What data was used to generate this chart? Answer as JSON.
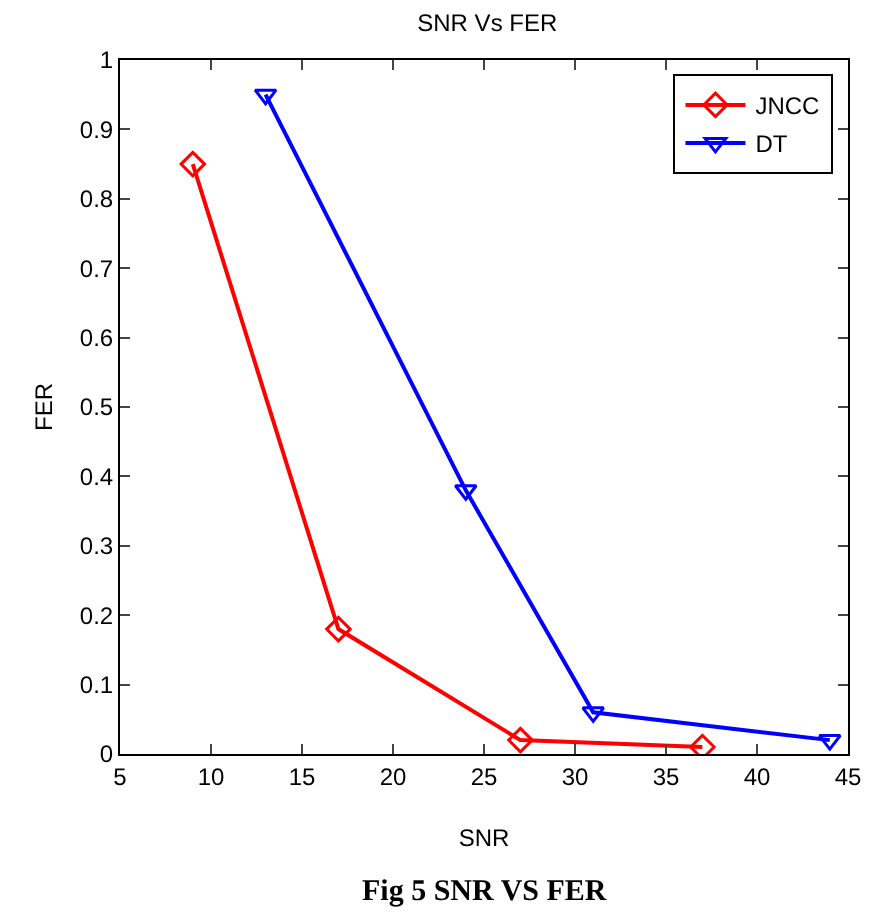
{
  "chart_data": {
    "type": "line",
    "title": "SNR Vs FER",
    "xlabel": "SNR",
    "ylabel": "FER",
    "annotations": [
      "Fig 5 SNR VS FER"
    ],
    "series": [
      {
        "name": "JNCC",
        "color": "#ff0000",
        "marker": "diamond",
        "x": [
          9,
          17,
          27,
          37
        ],
        "values": [
          0.85,
          0.18,
          0.02,
          0.01
        ]
      },
      {
        "name": "DT",
        "color": "#0000ff",
        "marker": "triangle",
        "x": [
          13,
          24,
          31,
          44
        ],
        "values": [
          0.95,
          0.38,
          0.06,
          0.02
        ]
      }
    ],
    "xlim": [
      5,
      45
    ],
    "xticks": [
      5,
      10,
      15,
      20,
      25,
      30,
      35,
      40,
      45
    ],
    "ylim": [
      0,
      1
    ],
    "yticks": [
      0,
      0.1,
      0.2,
      0.3,
      0.4,
      0.5,
      0.6,
      0.7,
      0.8,
      0.9,
      1
    ],
    "grid": false,
    "legend": "top right",
    "line_style": "solid"
  }
}
